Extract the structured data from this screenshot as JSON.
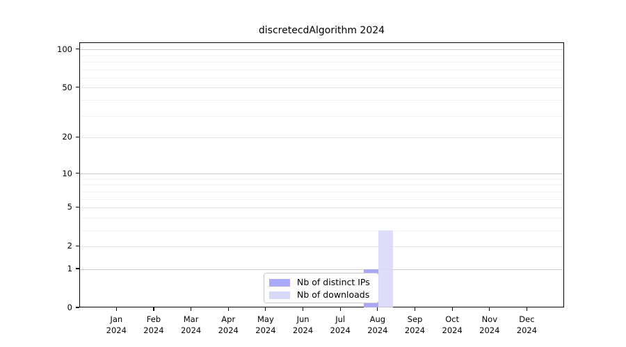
{
  "title": "discretecdAlgorithm 2024",
  "chart_data": {
    "type": "bar",
    "title": "discretecdAlgorithm 2024",
    "categories": [
      {
        "month": "Jan",
        "year": "2024"
      },
      {
        "month": "Feb",
        "year": "2024"
      },
      {
        "month": "Mar",
        "year": "2024"
      },
      {
        "month": "Apr",
        "year": "2024"
      },
      {
        "month": "May",
        "year": "2024"
      },
      {
        "month": "Jun",
        "year": "2024"
      },
      {
        "month": "Jul",
        "year": "2024"
      },
      {
        "month": "Aug",
        "year": "2024"
      },
      {
        "month": "Sep",
        "year": "2024"
      },
      {
        "month": "Oct",
        "year": "2024"
      },
      {
        "month": "Nov",
        "year": "2024"
      },
      {
        "month": "Dec",
        "year": "2024"
      }
    ],
    "series": [
      {
        "name": "Nb of distinct IPs",
        "color": "#a9a9f7",
        "values": [
          0,
          0,
          0,
          0,
          0,
          0,
          0,
          1,
          0,
          0,
          0,
          0
        ]
      },
      {
        "name": "Nb of downloads",
        "color": "#d8d8f8",
        "values": [
          0,
          0,
          0,
          0,
          0,
          0,
          0,
          3,
          0,
          0,
          0,
          0
        ]
      }
    ],
    "y_axis": {
      "scale": "log1p",
      "major_ticks": [
        0,
        1,
        2,
        5,
        10,
        20,
        50,
        100
      ],
      "minor_gridline_values": [
        3,
        4,
        6,
        7,
        8,
        9,
        30,
        40,
        60,
        70,
        80,
        90
      ],
      "top_value": 113
    },
    "xlabel": "",
    "ylabel": "",
    "grid": "horizontal",
    "legend_position": "bottom-center"
  }
}
